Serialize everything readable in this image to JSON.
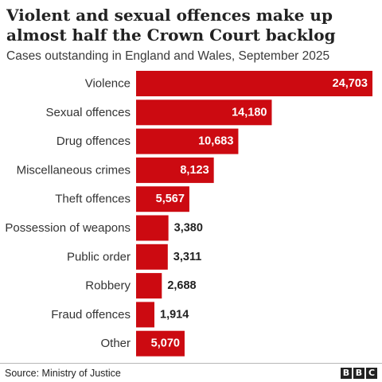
{
  "chart_data": {
    "type": "bar",
    "orientation": "horizontal",
    "title": "Violent and sexual offences make up almost half the Crown Court backlog",
    "subtitle": "Cases outstanding in England and Wales, September 2025",
    "categories": [
      "Violence",
      "Sexual offences",
      "Drug offences",
      "Miscellaneous crimes",
      "Theft offences",
      "Possession of weapons",
      "Public order",
      "Robbery",
      "Fraud offences",
      "Other"
    ],
    "values": [
      24703,
      14180,
      10683,
      8123,
      5567,
      3380,
      3311,
      2688,
      1914,
      5070
    ],
    "value_labels": [
      "24,703",
      "14,180",
      "10,683",
      "8,123",
      "5,567",
      "3,380",
      "3,311",
      "2,688",
      "1,914",
      "5,070"
    ],
    "xlim": [
      0,
      24703
    ],
    "grid": false,
    "legend": "none",
    "bar_color": "#cc0a11"
  },
  "footer": {
    "source": "Source: Ministry of Justice",
    "logo": [
      "B",
      "B",
      "C"
    ]
  }
}
